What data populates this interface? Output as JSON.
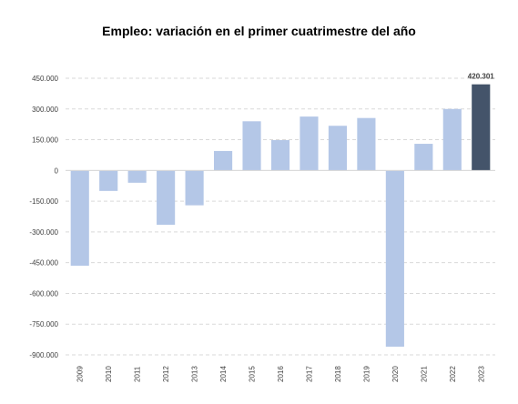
{
  "chart_data": {
    "type": "bar",
    "title": "Empleo: variación en el primer cuatrimestre del año",
    "xlabel": "",
    "ylabel": "",
    "categories": [
      "2009",
      "2010",
      "2011",
      "2012",
      "2013",
      "2014",
      "2015",
      "2016",
      "2017",
      "2018",
      "2019",
      "2020",
      "2021",
      "2022",
      "2023"
    ],
    "values": [
      -465000,
      -100000,
      -60000,
      -265000,
      -170000,
      95000,
      240000,
      148000,
      263000,
      218000,
      256000,
      -860000,
      130000,
      300000,
      420301
    ],
    "ylim": [
      -900000,
      450000
    ],
    "yticks": [
      450000,
      300000,
      150000,
      0,
      -150000,
      -300000,
      -450000,
      -600000,
      -750000,
      -900000
    ],
    "ytick_labels": [
      "450.000",
      "300.000",
      "150.000",
      "0",
      "-150.000",
      "-300.000",
      "-450.000",
      "-600.000",
      "-750.000",
      "-900.000"
    ],
    "data_labels": [
      {
        "category": "2023",
        "text": "420.301"
      }
    ],
    "grid": true,
    "legend": "none",
    "colors": {
      "default": "#b4c7e7",
      "highlight": "#44546a",
      "grid": "#d9d9d9",
      "axis": "#d9d9d9"
    },
    "highlight_category": "2023"
  }
}
